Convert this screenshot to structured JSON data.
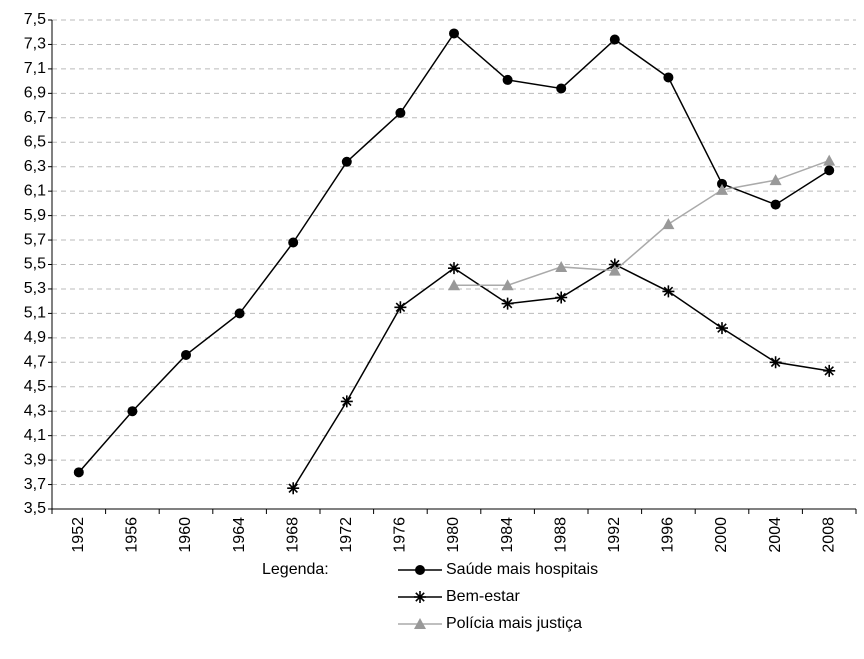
{
  "chart_data": {
    "type": "line",
    "categories": [
      "1952",
      "1956",
      "1960",
      "1964",
      "1968",
      "1972",
      "1976",
      "1980",
      "1984",
      "1988",
      "1992",
      "1996",
      "2000",
      "2004",
      "2008"
    ],
    "series": [
      {
        "name": "Saúde mais hospitais",
        "color": "#000000",
        "marker": "circle",
        "values": [
          3.8,
          4.3,
          4.76,
          5.1,
          5.68,
          6.34,
          6.74,
          7.39,
          7.01,
          6.94,
          7.34,
          7.03,
          6.16,
          5.99,
          6.27
        ]
      },
      {
        "name": "Bem-estar",
        "color": "#000000",
        "marker": "star",
        "values": [
          null,
          null,
          null,
          null,
          3.67,
          4.38,
          5.15,
          5.47,
          5.18,
          5.23,
          5.5,
          5.28,
          4.98,
          4.7,
          4.63
        ]
      },
      {
        "name": "Polícia mais justiça",
        "color": "#999999",
        "marker": "triangle",
        "values": [
          null,
          null,
          null,
          null,
          null,
          null,
          null,
          5.33,
          5.33,
          5.48,
          5.45,
          5.83,
          6.11,
          6.19,
          6.35
        ]
      }
    ],
    "ylim": [
      3.5,
      7.5
    ],
    "yticks": [
      {
        "value": 3.5,
        "label": "3,5"
      },
      {
        "value": 3.7,
        "label": "3,7"
      },
      {
        "value": 3.9,
        "label": "3,9"
      },
      {
        "value": 4.1,
        "label": "4,1"
      },
      {
        "value": 4.3,
        "label": "4,3"
      },
      {
        "value": 4.5,
        "label": "4,5"
      },
      {
        "value": 4.7,
        "label": "4,7"
      },
      {
        "value": 4.9,
        "label": "4,9"
      },
      {
        "value": 5.1,
        "label": "5,1"
      },
      {
        "value": 5.3,
        "label": "5,3"
      },
      {
        "value": 5.5,
        "label": "5,5"
      },
      {
        "value": 5.7,
        "label": "5,7"
      },
      {
        "value": 5.9,
        "label": "5,9"
      },
      {
        "value": 6.1,
        "label": "6,1"
      },
      {
        "value": 6.3,
        "label": "6,3"
      },
      {
        "value": 6.5,
        "label": "6,5"
      },
      {
        "value": 6.7,
        "label": "6,7"
      },
      {
        "value": 6.9,
        "label": "6,9"
      },
      {
        "value": 7.1,
        "label": "7,1"
      },
      {
        "value": 7.3,
        "label": "7,3"
      },
      {
        "value": 7.5,
        "label": "7,5"
      }
    ],
    "grid": true,
    "legend_title": "Legenda:"
  }
}
